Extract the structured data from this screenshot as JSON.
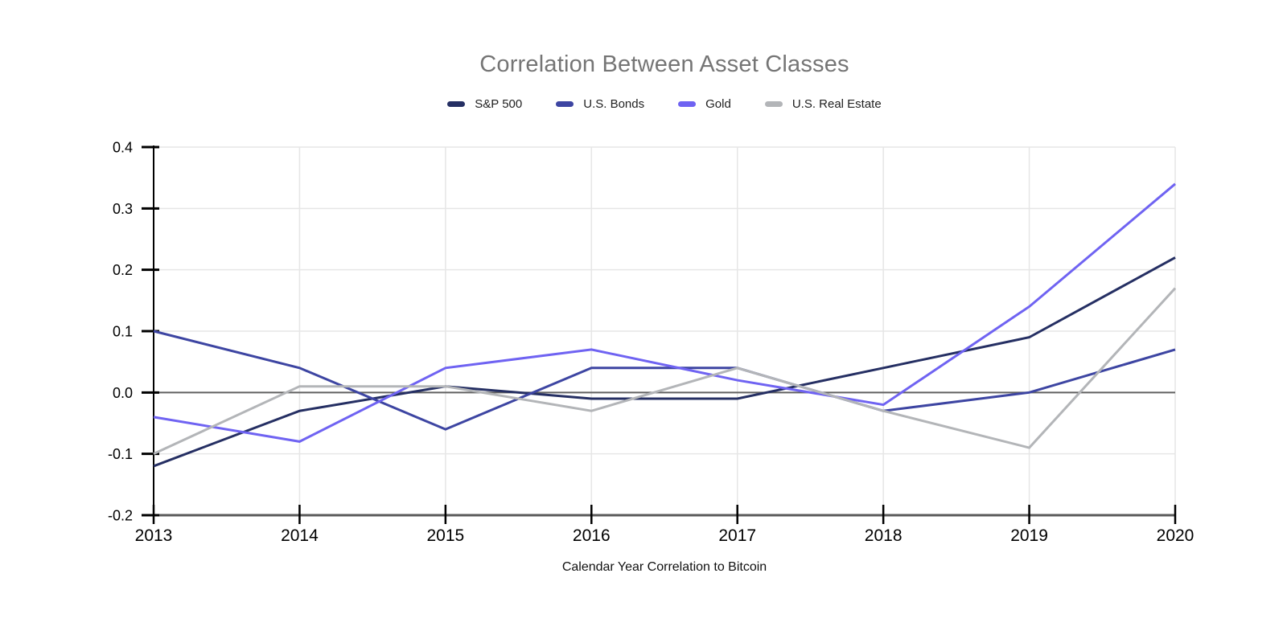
{
  "chart_data": {
    "type": "line",
    "title": "Correlation Between Asset Classes",
    "xlabel": "Calendar Year Correlation to Bitcoin",
    "x": [
      2013,
      2014,
      2015,
      2016,
      2017,
      2018,
      2019,
      2020
    ],
    "ylim": [
      -0.2,
      0.4
    ],
    "yticks": [
      "0.4",
      "0.3",
      "0.2",
      "0.1",
      "0.0",
      "-0.1",
      "-0.2"
    ],
    "grid": true,
    "legend_position": "top",
    "series": [
      {
        "name": "S&P 500",
        "color": "#252f63",
        "values": [
          -0.12,
          -0.03,
          0.01,
          -0.01,
          -0.01,
          0.04,
          0.09,
          0.22
        ]
      },
      {
        "name": "U.S. Bonds",
        "color": "#3d45a2",
        "values": [
          0.1,
          0.04,
          -0.06,
          0.04,
          0.04,
          -0.03,
          0.0,
          0.07
        ]
      },
      {
        "name": "Gold",
        "color": "#6f63f2",
        "values": [
          -0.04,
          -0.08,
          0.04,
          0.07,
          0.02,
          -0.02,
          0.14,
          0.34
        ]
      },
      {
        "name": "U.S. Real Estate",
        "color": "#b3b5b8",
        "values": [
          -0.1,
          0.01,
          0.01,
          -0.03,
          0.04,
          -0.03,
          -0.09,
          0.17
        ]
      }
    ]
  },
  "colors": {
    "background": "#ffffff",
    "title_text": "#757575",
    "tick_text": "#000000",
    "gridline": "#e6e6e6",
    "zero_line": "#616161",
    "bottom_axis": "#595959",
    "y_axis": "#000000"
  }
}
